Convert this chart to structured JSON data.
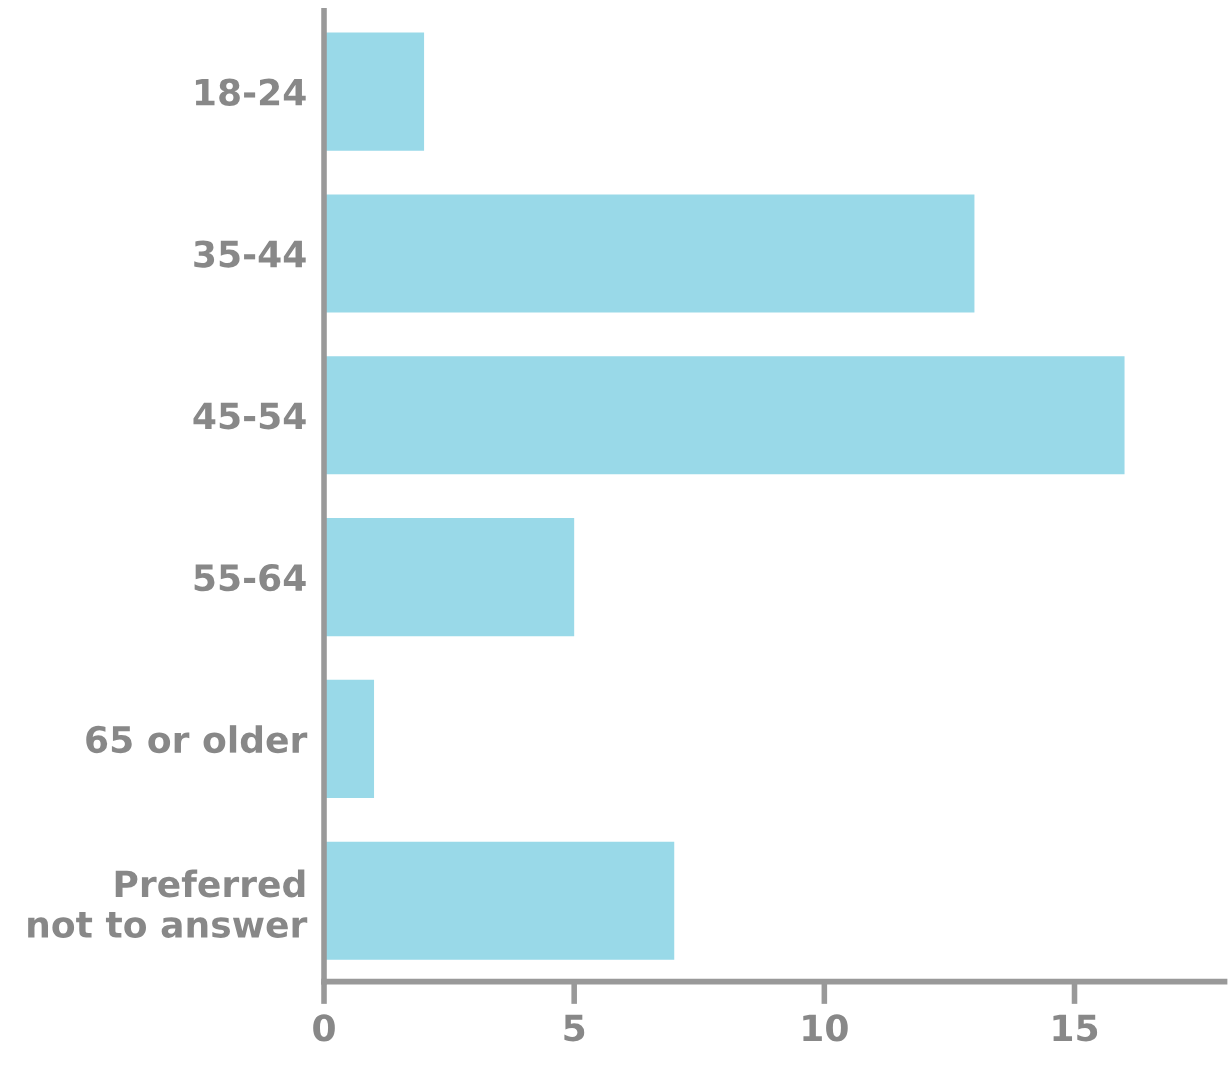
{
  "chart_data": {
    "type": "bar",
    "orientation": "horizontal",
    "categories": [
      "18-24",
      "35-44",
      "45-54",
      "55-64",
      "65 or older",
      "Preferred\nnot to answer"
    ],
    "values": [
      2,
      13,
      16,
      5,
      1,
      7
    ],
    "color": "#99d9e8",
    "xlim": [
      0,
      18
    ],
    "xticks": [
      0,
      5,
      10,
      15
    ],
    "grid": false,
    "legend": false
  }
}
